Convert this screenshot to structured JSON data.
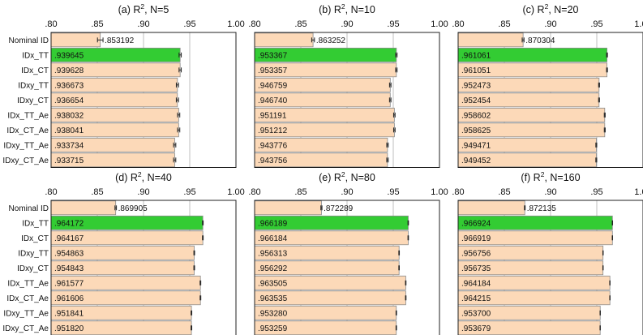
{
  "chart_data": {
    "type": "bar",
    "orientation": "horizontal",
    "categories": [
      "Nominal ID",
      "IDx_TT",
      "IDx_CT",
      "IDxy_TT",
      "IDxy_CT",
      "IDx_TT_Ae",
      "IDx_CT_Ae",
      "IDxy_TT_Ae",
      "IDxy_CT_Ae"
    ],
    "xlim": [
      0.8,
      1.0
    ],
    "xticks": [
      ".80",
      ".85",
      ".90",
      ".95",
      "1.00"
    ],
    "xtick_values": [
      0.8,
      0.85,
      0.9,
      0.95,
      1.0
    ],
    "grid": true,
    "colors": {
      "bar": "#fcd9b8",
      "highlight": "#33cc33",
      "edge": "#8a8a8a",
      "grid": "#bfbfbf",
      "text": "#111111"
    },
    "highlight_category": "IDx_TT",
    "panels": [
      {
        "label": "(a)",
        "measure": "R",
        "superscript": "2",
        "condition": ", N=5",
        "values": [
          0.853192,
          0.939645,
          0.939628,
          0.936673,
          0.936654,
          0.938032,
          0.938041,
          0.933734,
          0.933715
        ],
        "value_labels": [
          ".853192",
          ".939645",
          ".939628",
          ".936673",
          ".936654",
          ".938032",
          ".938041",
          ".933734",
          ".933715"
        ],
        "errors": [
          0.003,
          0.0012,
          0.0012,
          0.0012,
          0.0012,
          0.0012,
          0.0012,
          0.0012,
          0.0012
        ]
      },
      {
        "label": "(b)",
        "measure": "R",
        "superscript": "2",
        "condition": ", N=10",
        "values": [
          0.863252,
          0.953367,
          0.953357,
          0.946759,
          0.94674,
          0.951191,
          0.951212,
          0.943776,
          0.943756
        ],
        "value_labels": [
          ".863252",
          ".953367",
          ".953357",
          ".946759",
          ".946740",
          ".951191",
          ".951212",
          ".943776",
          ".943756"
        ],
        "errors": [
          0.0015,
          0.0008,
          0.0008,
          0.0008,
          0.0008,
          0.0008,
          0.0008,
          0.0008,
          0.0008
        ]
      },
      {
        "label": "(c)",
        "measure": "R",
        "superscript": "2",
        "condition": ", N=20",
        "values": [
          0.870304,
          0.961061,
          0.961051,
          0.952473,
          0.952454,
          0.958602,
          0.958625,
          0.949471,
          0.949452
        ],
        "value_labels": [
          ".870304",
          ".961061",
          ".961051",
          ".952473",
          ".952454",
          ".958602",
          ".958625",
          ".949471",
          ".949452"
        ],
        "errors": [
          0.001,
          0.0005,
          0.0005,
          0.0005,
          0.0005,
          0.0005,
          0.0005,
          0.0005,
          0.0005
        ]
      },
      {
        "label": "(d)",
        "measure": "R",
        "superscript": "2",
        "condition": ", N=40",
        "values": [
          0.869905,
          0.964172,
          0.964167,
          0.954863,
          0.954843,
          0.961577,
          0.961606,
          0.951841,
          0.95182
        ],
        "value_labels": [
          ".869905",
          ".964172",
          ".964167",
          ".954863",
          ".954843",
          ".961577",
          ".961606",
          ".951841",
          ".951820"
        ],
        "errors": [
          0.0008,
          0.0004,
          0.0004,
          0.0004,
          0.0004,
          0.0004,
          0.0004,
          0.0004,
          0.0004
        ]
      },
      {
        "label": "(e)",
        "measure": "R",
        "superscript": "2",
        "condition": ", N=80",
        "values": [
          0.872289,
          0.966189,
          0.966184,
          0.956313,
          0.956292,
          0.963505,
          0.963535,
          0.95328,
          0.953259
        ],
        "value_labels": [
          ".872289",
          ".966189",
          ".966184",
          ".956313",
          ".956292",
          ".963505",
          ".963535",
          ".953280",
          ".953259"
        ],
        "errors": [
          0.0006,
          0.0003,
          0.0003,
          0.0003,
          0.0003,
          0.0003,
          0.0003,
          0.0003,
          0.0003
        ]
      },
      {
        "label": "(f)",
        "measure": "R",
        "superscript": "2",
        "condition": ", N=160",
        "values": [
          0.872135,
          0.966924,
          0.966919,
          0.956756,
          0.956735,
          0.964184,
          0.964215,
          0.9537,
          0.953679
        ],
        "value_labels": [
          ".872135",
          ".966924",
          ".966919",
          ".956756",
          ".956735",
          ".964184",
          ".964215",
          ".953700",
          ".953679"
        ],
        "errors": [
          0.0004,
          0.0002,
          0.0002,
          0.0002,
          0.0002,
          0.0002,
          0.0002,
          0.0002,
          0.0002
        ]
      }
    ]
  }
}
